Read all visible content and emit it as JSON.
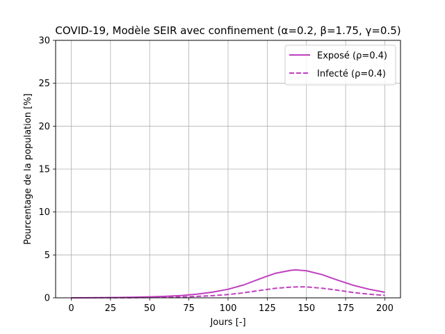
{
  "chart_data": {
    "type": "line",
    "title": "COVID-19, Modèle SEIR avec confinement (α=0.2, β=1.75, γ=0.5)",
    "xlabel": "Jours [-]",
    "ylabel": "Pourcentage de la population [%]",
    "xlim": [
      -10,
      210
    ],
    "ylim": [
      0,
      30
    ],
    "xticks": [
      0,
      25,
      50,
      75,
      100,
      125,
      150,
      175,
      200
    ],
    "yticks": [
      0,
      5,
      10,
      15,
      20,
      25,
      30
    ],
    "grid": true,
    "legend_position": "top-right",
    "series": [
      {
        "name": "Exposé (ρ=0.4)",
        "color": "#bf3fbf",
        "linestyle": "solid",
        "x": [
          0,
          10,
          20,
          30,
          40,
          50,
          60,
          70,
          80,
          90,
          100,
          110,
          120,
          130,
          140,
          143,
          150,
          160,
          170,
          180,
          190,
          200
        ],
        "values": [
          0.0,
          0.01,
          0.02,
          0.04,
          0.07,
          0.11,
          0.17,
          0.27,
          0.42,
          0.66,
          1.0,
          1.5,
          2.2,
          2.85,
          3.2,
          3.25,
          3.15,
          2.7,
          2.05,
          1.45,
          1.0,
          0.65
        ]
      },
      {
        "name": "Infecté (ρ=0.4)",
        "color": "#bf3fbf",
        "linestyle": "dashed",
        "x": [
          0,
          10,
          20,
          30,
          40,
          50,
          60,
          70,
          80,
          90,
          100,
          110,
          120,
          130,
          140,
          146,
          150,
          160,
          170,
          180,
          190,
          200
        ],
        "values": [
          0.0,
          0.0,
          0.01,
          0.01,
          0.02,
          0.04,
          0.06,
          0.1,
          0.16,
          0.25,
          0.38,
          0.58,
          0.85,
          1.1,
          1.25,
          1.28,
          1.27,
          1.12,
          0.88,
          0.62,
          0.42,
          0.28
        ]
      }
    ]
  }
}
